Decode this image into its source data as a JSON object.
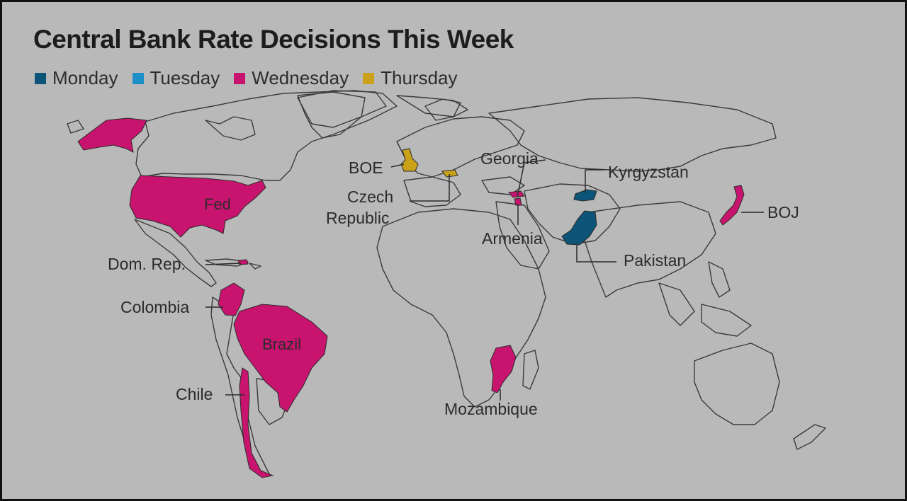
{
  "title": "Central Bank Rate Decisions This Week",
  "legend": [
    {
      "label": "Monday",
      "color": "#0d5578"
    },
    {
      "label": "Tuesday",
      "color": "#1e8fc8"
    },
    {
      "label": "Wednesday",
      "color": "#c8146e"
    },
    {
      "label": "Thursday",
      "color": "#c9a21a"
    }
  ],
  "regions": [
    {
      "label": "Fed",
      "day": "Wednesday"
    },
    {
      "label": "Dom. Rep.",
      "day": "Wednesday"
    },
    {
      "label": "Colombia",
      "day": "Wednesday"
    },
    {
      "label": "Brazil",
      "day": "Wednesday"
    },
    {
      "label": "Chile",
      "day": "Wednesday"
    },
    {
      "label": "BOE",
      "day": "Thursday"
    },
    {
      "label": "Czech Republic",
      "day": "Thursday"
    },
    {
      "label": "Georgia",
      "day": "Wednesday"
    },
    {
      "label": "Armenia",
      "day": "Wednesday"
    },
    {
      "label": "Kyrgyzstan",
      "day": "Monday"
    },
    {
      "label": "Pakistan",
      "day": "Monday"
    },
    {
      "label": "BOJ",
      "day": "Wednesday"
    },
    {
      "label": "Mozambique",
      "day": "Wednesday"
    }
  ],
  "labels": {
    "fed": "Fed",
    "dom_rep": "Dom. Rep.",
    "colombia": "Colombia",
    "brazil": "Brazil",
    "chile": "Chile",
    "boe": "BOE",
    "czech_1": "Czech",
    "czech_2": "Republic",
    "georgia": "Georgia",
    "armenia": "Armenia",
    "kyrgyzstan": "Kyrgyzstan",
    "pakistan": "Pakistan",
    "boj": "BOJ",
    "mozambique": "Mozambique"
  }
}
